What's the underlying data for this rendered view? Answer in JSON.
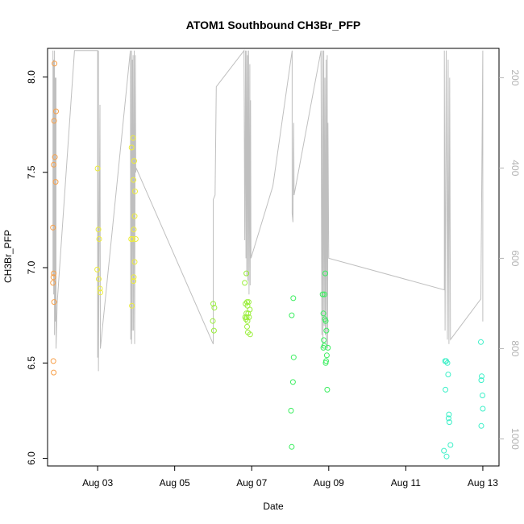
{
  "chart_data": {
    "type": "scatter",
    "title": "ATOM1 Southbound CH3Br_PFP",
    "xlabel": "Date",
    "ylabel": "CH3Br_PFP",
    "x_tick_labels": [
      "Aug 03",
      "Aug 05",
      "Aug 07",
      "Aug 09",
      "Aug 11",
      "Aug 13"
    ],
    "x_ticks_day": [
      3,
      5,
      7,
      9,
      11,
      13
    ],
    "xlim_day": [
      1.7,
      13.42
    ],
    "y_ticks": [
      "6.0",
      "6.5",
      "7.0",
      "7.5",
      "8.0"
    ],
    "ylim": [
      5.96,
      8.15
    ],
    "right_axis": {
      "label": "",
      "ticks": [
        "200",
        "400",
        "600",
        "800",
        "1000"
      ],
      "ylim": [
        1060,
        135
      ],
      "reversed": true,
      "color": "#b3b3b3"
    },
    "grid": false,
    "legend": "none",
    "series": [
      {
        "color": "#f7a04a",
        "points": [
          [
            1.88,
            8.07
          ],
          [
            1.87,
            7.77
          ],
          [
            1.92,
            7.82
          ],
          [
            1.89,
            7.58
          ],
          [
            1.86,
            7.54
          ],
          [
            1.91,
            7.45
          ],
          [
            1.84,
            7.21
          ],
          [
            1.86,
            6.97
          ],
          [
            1.85,
            6.95
          ],
          [
            1.84,
            6.92
          ],
          [
            1.87,
            6.82
          ],
          [
            1.85,
            6.51
          ],
          [
            1.86,
            6.45
          ]
        ]
      },
      {
        "color": "#eeee3c",
        "points": [
          [
            3.0,
            7.52
          ],
          [
            3.02,
            7.2
          ],
          [
            3.04,
            7.15
          ],
          [
            2.99,
            6.99
          ],
          [
            3.03,
            6.94
          ],
          [
            3.06,
            6.89
          ],
          [
            3.07,
            6.87
          ],
          [
            3.88,
            7.63
          ],
          [
            3.92,
            7.68
          ],
          [
            3.95,
            7.56
          ],
          [
            3.93,
            7.46
          ],
          [
            3.97,
            7.4
          ],
          [
            3.96,
            7.27
          ],
          [
            3.94,
            7.2
          ],
          [
            3.87,
            7.15
          ],
          [
            3.91,
            7.15
          ],
          [
            3.99,
            7.15
          ],
          [
            3.96,
            7.03
          ],
          [
            3.94,
            6.95
          ],
          [
            3.93,
            6.93
          ],
          [
            3.89,
            6.8
          ]
        ]
      },
      {
        "color": "#9aee3c",
        "points": [
          [
            6.0,
            6.81
          ],
          [
            6.03,
            6.79
          ],
          [
            5.99,
            6.72
          ],
          [
            6.02,
            6.67
          ],
          [
            6.82,
            6.92
          ],
          [
            6.86,
            6.97
          ],
          [
            6.88,
            6.82
          ],
          [
            6.84,
            6.81
          ],
          [
            6.92,
            6.82
          ],
          [
            6.89,
            6.8
          ],
          [
            6.95,
            6.78
          ],
          [
            6.86,
            6.76
          ],
          [
            6.91,
            6.76
          ],
          [
            6.83,
            6.74
          ],
          [
            6.87,
            6.74
          ],
          [
            6.93,
            6.74
          ],
          [
            6.85,
            6.73
          ],
          [
            6.89,
            6.72
          ],
          [
            6.88,
            6.69
          ],
          [
            6.9,
            6.66
          ],
          [
            6.96,
            6.65
          ]
        ]
      },
      {
        "color": "#3cee60",
        "points": [
          [
            8.04,
            6.75
          ],
          [
            8.08,
            6.84
          ],
          [
            8.09,
            6.53
          ],
          [
            8.07,
            6.4
          ],
          [
            8.02,
            6.25
          ],
          [
            8.04,
            6.06
          ],
          [
            8.84,
            6.86
          ],
          [
            8.89,
            6.86
          ],
          [
            8.91,
            6.97
          ],
          [
            8.86,
            6.76
          ],
          [
            8.9,
            6.73
          ],
          [
            8.92,
            6.72
          ],
          [
            8.94,
            6.67
          ],
          [
            8.87,
            6.62
          ],
          [
            8.88,
            6.59
          ],
          [
            8.86,
            6.58
          ],
          [
            8.98,
            6.58
          ],
          [
            8.95,
            6.54
          ],
          [
            8.93,
            6.51
          ],
          [
            8.92,
            6.5
          ],
          [
            8.96,
            6.36
          ]
        ]
      },
      {
        "color": "#3cf0c8",
        "points": [
          [
            12.02,
            6.51
          ],
          [
            12.05,
            6.51
          ],
          [
            12.08,
            6.5
          ],
          [
            12.1,
            6.44
          ],
          [
            12.03,
            6.36
          ],
          [
            12.12,
            6.23
          ],
          [
            12.11,
            6.21
          ],
          [
            12.13,
            6.19
          ],
          [
            12.16,
            6.07
          ],
          [
            11.99,
            6.04
          ],
          [
            12.06,
            6.01
          ],
          [
            12.95,
            6.61
          ],
          [
            12.97,
            6.43
          ],
          [
            12.96,
            6.41
          ],
          [
            12.99,
            6.33
          ],
          [
            13.0,
            6.26
          ],
          [
            12.96,
            6.17
          ]
        ]
      }
    ],
    "altitude_line": {
      "color": "#bfbfbf",
      "points": [
        [
          1.84,
          140
        ],
        [
          1.84,
          640
        ],
        [
          1.86,
          160
        ],
        [
          1.86,
          680
        ],
        [
          1.88,
          140
        ],
        [
          1.88,
          770
        ],
        [
          1.9,
          200
        ],
        [
          1.9,
          740
        ],
        [
          1.92,
          200
        ],
        [
          1.92,
          800
        ],
        [
          1.95,
          700
        ],
        [
          2.4,
          140
        ],
        [
          2.9,
          140
        ],
        [
          3.0,
          140
        ],
        [
          3.0,
          820
        ],
        [
          3.02,
          140
        ],
        [
          3.02,
          850
        ],
        [
          3.06,
          260
        ],
        [
          3.07,
          800
        ],
        [
          3.85,
          140
        ],
        [
          3.86,
          780
        ],
        [
          3.88,
          140
        ],
        [
          3.88,
          790
        ],
        [
          3.9,
          160
        ],
        [
          3.9,
          760
        ],
        [
          3.92,
          150
        ],
        [
          3.93,
          760
        ],
        [
          3.95,
          140
        ],
        [
          3.96,
          790
        ],
        [
          3.98,
          150
        ],
        [
          3.99,
          410
        ],
        [
          4.0,
          400
        ],
        [
          6.0,
          790
        ],
        [
          6.0,
          470
        ],
        [
          6.05,
          460
        ],
        [
          6.08,
          220
        ],
        [
          6.8,
          140
        ],
        [
          6.82,
          560
        ],
        [
          6.84,
          140
        ],
        [
          6.85,
          600
        ],
        [
          6.87,
          140
        ],
        [
          6.87,
          640
        ],
        [
          6.89,
          150
        ],
        [
          6.9,
          650
        ],
        [
          6.92,
          140
        ],
        [
          6.93,
          680
        ],
        [
          6.95,
          170
        ],
        [
          6.96,
          660
        ],
        [
          6.97,
          250
        ],
        [
          6.98,
          600
        ],
        [
          7.55,
          440
        ],
        [
          8.05,
          140
        ],
        [
          8.05,
          500
        ],
        [
          8.07,
          520
        ],
        [
          8.09,
          300
        ],
        [
          8.1,
          460
        ],
        [
          8.8,
          140
        ],
        [
          8.82,
          770
        ],
        [
          8.84,
          140
        ],
        [
          8.85,
          800
        ],
        [
          8.87,
          140
        ],
        [
          8.88,
          750
        ],
        [
          8.9,
          200
        ],
        [
          8.91,
          770
        ],
        [
          8.93,
          160
        ],
        [
          8.94,
          800
        ],
        [
          8.96,
          150
        ],
        [
          8.97,
          800
        ],
        [
          8.98,
          300
        ],
        [
          9.0,
          600
        ],
        [
          12.0,
          670
        ],
        [
          12.0,
          140
        ],
        [
          12.02,
          760
        ],
        [
          12.05,
          140
        ],
        [
          12.08,
          780
        ],
        [
          12.1,
          160
        ],
        [
          12.12,
          790
        ],
        [
          12.14,
          200
        ],
        [
          12.16,
          780
        ],
        [
          12.95,
          690
        ],
        [
          13.0,
          140
        ],
        [
          13.0,
          170
        ],
        [
          13.0,
          740
        ]
      ]
    }
  }
}
